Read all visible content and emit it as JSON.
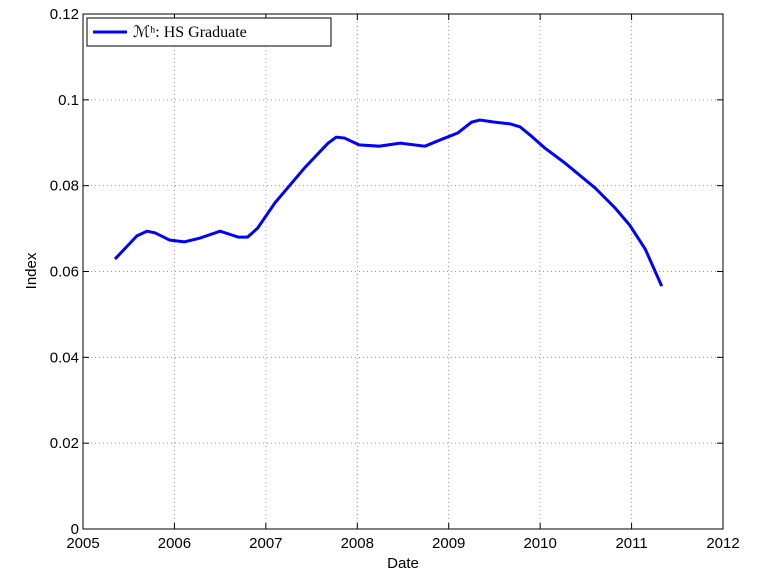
{
  "chart_data": {
    "type": "line",
    "xlabel": "Date",
    "ylabel": "Index",
    "x": [
      2005.35,
      2005.59,
      2005.7,
      2005.79,
      2005.95,
      2006.11,
      2006.28,
      2006.5,
      2006.7,
      2006.8,
      2006.91,
      2007.1,
      2007.43,
      2007.68,
      2007.77,
      2007.86,
      2008.02,
      2008.24,
      2008.47,
      2008.74,
      2008.9,
      2009.1,
      2009.25,
      2009.34,
      2009.5,
      2009.67,
      2009.78,
      2009.89,
      2010.05,
      2010.27,
      2010.6,
      2010.82,
      2010.98,
      2011.15,
      2011.33
    ],
    "series": [
      {
        "name": "ℳʰ: HS Graduate",
        "color": "#0000ff",
        "values": [
          0.0629,
          0.0683,
          0.0694,
          0.069,
          0.0673,
          0.0669,
          0.0678,
          0.0694,
          0.068,
          0.068,
          0.0701,
          0.076,
          0.0843,
          0.0899,
          0.0913,
          0.0911,
          0.0895,
          0.0892,
          0.0899,
          0.0892,
          0.0906,
          0.0923,
          0.0948,
          0.0953,
          0.0948,
          0.0944,
          0.0937,
          0.0918,
          0.0888,
          0.0853,
          0.0795,
          0.0748,
          0.0708,
          0.0652,
          0.0566
        ]
      }
    ],
    "xlim": [
      2005,
      2012
    ],
    "xticks": [
      2005,
      2006,
      2007,
      2008,
      2009,
      2010,
      2011,
      2012
    ],
    "ylim": [
      0,
      0.12
    ],
    "yticks": [
      0,
      0.02,
      0.04,
      0.06,
      0.08,
      0.1,
      0.12
    ],
    "grid": true,
    "legend": "upper-left"
  }
}
